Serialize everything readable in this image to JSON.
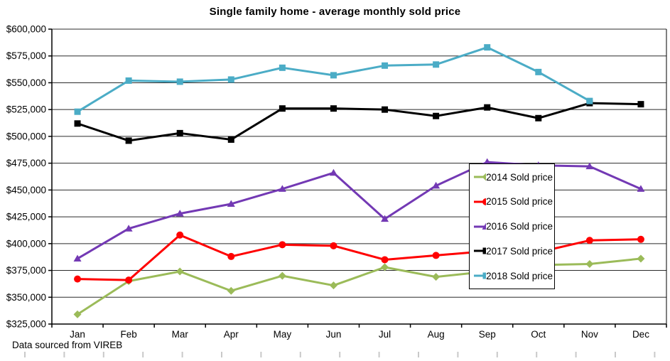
{
  "page": {
    "title": "Single family home - average monthly sold price",
    "footer_note": "Data sourced from VIREB"
  },
  "chart_data": {
    "type": "line",
    "title": "Single family home - average monthly sold price",
    "categories": [
      "Jan",
      "Feb",
      "Mar",
      "Apr",
      "May",
      "Jun",
      "Jul",
      "Aug",
      "Sep",
      "Oct",
      "Nov",
      "Dec"
    ],
    "series": [
      {
        "name": "2014 Sold price",
        "color": "#9BBB59",
        "marker": "diamond",
        "values": [
          334000,
          365000,
          374000,
          356000,
          370000,
          361000,
          378000,
          369000,
          374000,
          380000,
          381000,
          386000
        ]
      },
      {
        "name": "2015 Sold price",
        "color": "#FF0000",
        "marker": "circle",
        "values": [
          367000,
          366000,
          408000,
          388000,
          399000,
          398000,
          385000,
          389000,
          393000,
          392000,
          403000,
          404000
        ]
      },
      {
        "name": "2016 Sold price",
        "color": "#7339B4",
        "marker": "triangle",
        "values": [
          386000,
          414000,
          428000,
          437000,
          451000,
          466000,
          423000,
          454000,
          476000,
          473000,
          472000,
          451000
        ]
      },
      {
        "name": "2017 Sold price",
        "color": "#000000",
        "marker": "square",
        "values": [
          512000,
          496000,
          503000,
          497000,
          526000,
          526000,
          525000,
          519000,
          527000,
          517000,
          531000,
          530000
        ]
      },
      {
        "name": "2018 Sold price",
        "color": "#4BACC6",
        "marker": "square",
        "values": [
          523000,
          552000,
          551000,
          553000,
          564000,
          557000,
          566000,
          567000,
          583000,
          560000,
          533000,
          null
        ]
      }
    ],
    "ylim": [
      325000,
      600000
    ],
    "ytick_step": 25000,
    "ytick_labels": [
      "$600,000",
      "$575,000",
      "$550,000",
      "$525,000",
      "$500,000",
      "$475,000",
      "$450,000",
      "$425,000",
      "$400,000",
      "$375,000",
      "$350,000",
      "$325,000"
    ],
    "grid": true,
    "legend_position": "inside-right",
    "axis_color": "#000000",
    "gridline_color": "#2b2b2b",
    "faint_edge_tick_color": "#c9c9c9"
  }
}
